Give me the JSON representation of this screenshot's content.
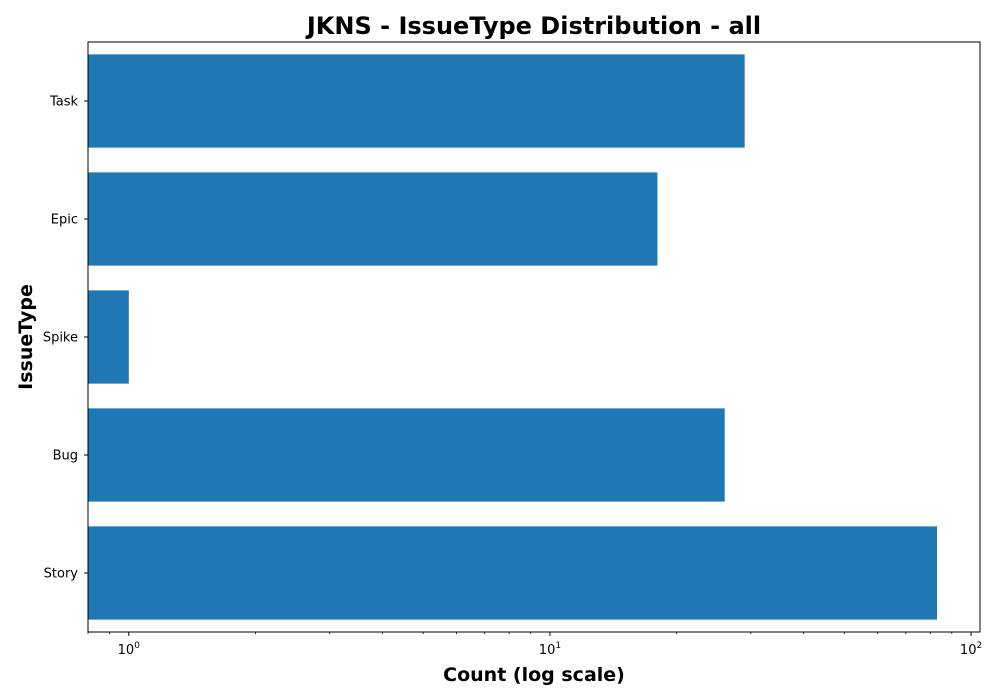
{
  "chart_data": {
    "type": "bar",
    "orientation": "horizontal",
    "title": "JKNS - IssueType Distribution - all",
    "xlabel": "Count (log scale)",
    "ylabel": "IssueType",
    "x_scale": "log",
    "xlim": [
      0.8,
      105
    ],
    "categories": [
      "Story",
      "Bug",
      "Spike",
      "Epic",
      "Task"
    ],
    "values": [
      83,
      26,
      1,
      18,
      29
    ],
    "x_ticks": [
      {
        "value": 1,
        "base": "10",
        "exp": "0"
      },
      {
        "value": 10,
        "base": "10",
        "exp": "1"
      },
      {
        "value": 100,
        "base": "10",
        "exp": "2"
      }
    ],
    "bar_color": "#1f77b4",
    "grid": false,
    "legend": "none"
  }
}
